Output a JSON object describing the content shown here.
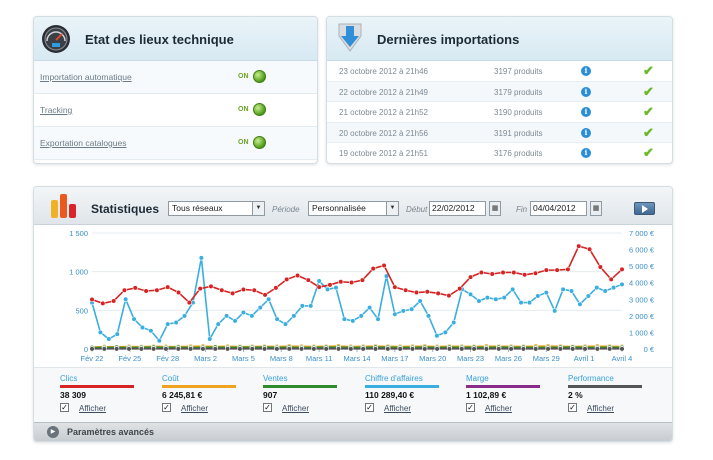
{
  "tech_panel": {
    "title": "Etat des lieux technique",
    "icon": "gauge-icon",
    "rows": [
      {
        "label": "Importation automatique",
        "status": "ON"
      },
      {
        "label": "Tracking",
        "status": "ON"
      },
      {
        "label": "Exportation catalogues",
        "status": "ON"
      }
    ]
  },
  "imports_panel": {
    "title": "Dernières importations",
    "icon": "download-arrow-icon",
    "rows": [
      {
        "date": "23 octobre 2012 à 21h46",
        "products": "3197 produits"
      },
      {
        "date": "22 octobre 2012 à 21h49",
        "products": "3179 produits"
      },
      {
        "date": "21 octobre 2012 à 21h52",
        "products": "3190 produits"
      },
      {
        "date": "20 octobre 2012 à 21h56",
        "products": "3191 produits"
      },
      {
        "date": "19 octobre 2012 à 21h51",
        "products": "3176 produits"
      }
    ]
  },
  "stats": {
    "title": "Statistiques",
    "network_select": "Tous réseaux",
    "periode_label": "Période",
    "periode_select": "Personnalisée",
    "debut_label": "Début",
    "debut_value": "22/02/2012",
    "fin_label": "Fin",
    "fin_value": "04/04/2012",
    "go_icon": "play-icon"
  },
  "metrics": [
    {
      "label": "Clics",
      "value": "38 309",
      "color": "#d62323",
      "show_label": "Afficher"
    },
    {
      "label": "Coût",
      "value": "6 245,81 €",
      "color": "#f0a31f",
      "show_label": "Afficher"
    },
    {
      "label": "Ventes",
      "value": "907",
      "color": "#2e8b2e",
      "show_label": "Afficher"
    },
    {
      "label": "Chiffre d'affaires",
      "value": "110 289,40 €",
      "color": "#3aaee0",
      "show_label": "Afficher"
    },
    {
      "label": "Marge",
      "value": "1 102,89 €",
      "color": "#8a2c8a",
      "show_label": "Afficher"
    },
    {
      "label": "Performance",
      "value": "2 %",
      "color": "#555555",
      "show_label": "Afficher"
    }
  ],
  "advanced_label": "Paramètres avancés",
  "chart_data": {
    "type": "line",
    "x_ticks": [
      "Fév 22",
      "Fév 25",
      "Fév 28",
      "Mars 2",
      "Mars 5",
      "Mars 8",
      "Mars 11",
      "Mars 14",
      "Mars 17",
      "Mars 20",
      "Mars 23",
      "Mars 26",
      "Mars 29",
      "Avril 1",
      "Avril 4"
    ],
    "y_left": {
      "ticks": [
        "0",
        "500",
        "1 000",
        "1 500"
      ],
      "range": [
        0,
        1500
      ]
    },
    "y_right": {
      "ticks": [
        "0 €",
        "1 000 €",
        "2 000 €",
        "3 000 €",
        "4 000 €",
        "5 000 €",
        "6 000 €",
        "7 000 €"
      ],
      "range": [
        0,
        7000
      ]
    },
    "series": [
      {
        "name": "Clics",
        "axis": "left",
        "color": "#d62323",
        "values": [
          640,
          590,
          620,
          760,
          790,
          750,
          760,
          800,
          730,
          600,
          780,
          810,
          760,
          720,
          770,
          760,
          700,
          790,
          900,
          950,
          890,
          800,
          830,
          870,
          860,
          890,
          1040,
          1080,
          800,
          760,
          730,
          740,
          720,
          690,
          780,
          930,
          990,
          970,
          990,
          990,
          960,
          980,
          1020,
          1020,
          1030,
          1330,
          1290,
          1060,
          900,
          1030
        ]
      },
      {
        "name": "Chiffre d'affaires",
        "axis": "right",
        "color": "#3aaee0",
        "values": [
          2800,
          1000,
          600,
          900,
          3000,
          1800,
          1300,
          1100,
          500,
          1500,
          1600,
          2000,
          2800,
          5500,
          600,
          1500,
          2000,
          1700,
          2200,
          2000,
          2500,
          3000,
          1800,
          1500,
          2000,
          2600,
          2600,
          4100,
          3600,
          3700,
          1800,
          1700,
          2000,
          2500,
          1800,
          4400,
          2100,
          2300,
          2400,
          2900,
          2000,
          800,
          1000,
          1600,
          3600,
          3300,
          2900,
          3100,
          3000,
          3100,
          3600,
          2800,
          2800,
          3200,
          3400,
          2300,
          3600,
          3500,
          2700,
          3200,
          3700,
          3500,
          3700,
          3900
        ]
      },
      {
        "name": "Coût",
        "axis": "right",
        "color": "#f0a31f",
        "values": [
          120,
          140,
          130,
          150,
          140,
          160,
          150,
          140,
          160,
          170,
          150,
          160,
          140,
          150,
          160,
          150,
          170,
          160,
          150,
          160,
          180,
          150,
          160,
          170,
          160,
          150,
          160,
          170,
          150,
          160,
          160,
          150,
          170,
          160,
          160,
          150,
          170,
          180,
          160,
          150,
          160,
          170,
          160,
          150
        ]
      },
      {
        "name": "Ventes",
        "axis": "left",
        "color": "#2e8b2e",
        "values": [
          18,
          20,
          22,
          19,
          21,
          23,
          20,
          22,
          19,
          21,
          24,
          20,
          22,
          21,
          23,
          20,
          22,
          19,
          21,
          23,
          22,
          20,
          21,
          24,
          22,
          20,
          21,
          23,
          20,
          22,
          21,
          22,
          20,
          23,
          21,
          22,
          20,
          21,
          22,
          23,
          21,
          20,
          22,
          21
        ]
      },
      {
        "name": "Marge",
        "axis": "right",
        "color": "#8a2c8a",
        "values": [
          20,
          22,
          24,
          21,
          23,
          25,
          22,
          24,
          21,
          23,
          26,
          22,
          24,
          23,
          25,
          22,
          24,
          21,
          23,
          25,
          24,
          22,
          23,
          26,
          24,
          22,
          23,
          25,
          22,
          24,
          23,
          24,
          22,
          25,
          23,
          24,
          22,
          23,
          24,
          25,
          23,
          22,
          24,
          23
        ]
      },
      {
        "name": "Performance",
        "axis": "left",
        "color": "#555555",
        "values": [
          2,
          2,
          2,
          2,
          2,
          2,
          2,
          2,
          2,
          2,
          2,
          2,
          2,
          2,
          2,
          2,
          2,
          2,
          2,
          2,
          2,
          2,
          2,
          2,
          2,
          2,
          2,
          2,
          2,
          2,
          2,
          2,
          2,
          2,
          2,
          2,
          2,
          2,
          2,
          2,
          2,
          2,
          2,
          2
        ]
      }
    ]
  }
}
